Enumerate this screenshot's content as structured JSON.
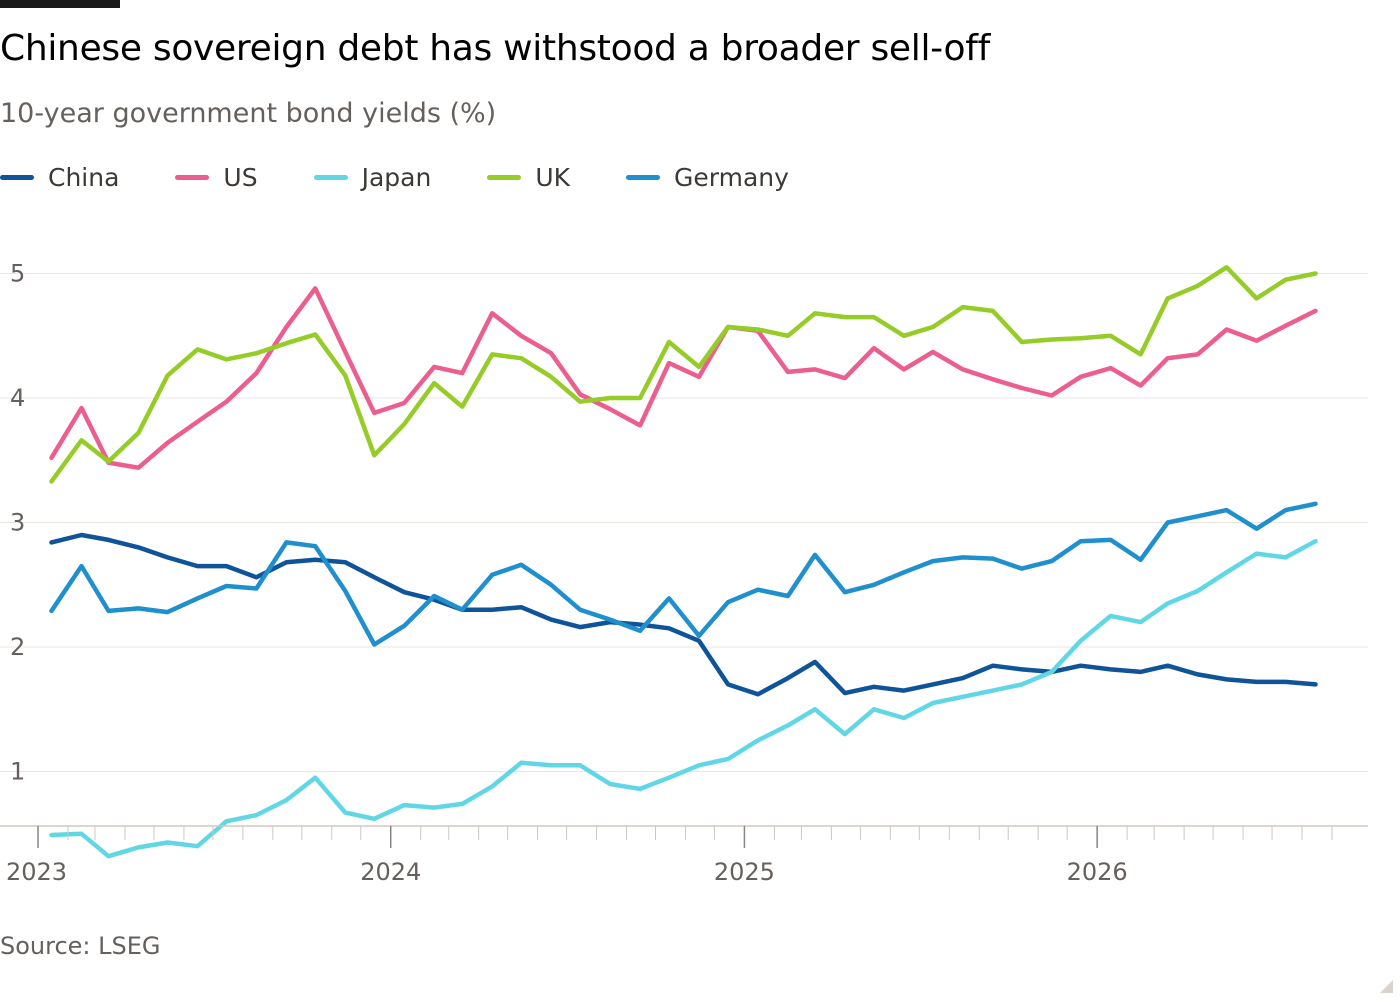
{
  "title": "Chinese sovereign debt has withstood a broader sell-off",
  "subtitle": "10-year government bond yields (%)",
  "source": "Source: LSEG",
  "chart_data": {
    "type": "line",
    "x_range": [
      "2023-01-01",
      "2026-09-30"
    ],
    "ylim": [
      0.55,
      5.25
    ],
    "y_ticks": [
      1,
      2,
      3,
      4,
      5
    ],
    "x_ticks": [
      "2023",
      "2024",
      "2025",
      "2026"
    ],
    "grid": true,
    "legend": "top-left",
    "series": [
      {
        "name": "China",
        "color": "#0f5499",
        "points": [
          [
            "2023-01",
            2.84
          ],
          [
            "2023-02",
            2.9
          ],
          [
            "2023-03",
            2.86
          ],
          [
            "2023-04",
            2.8
          ],
          [
            "2023-05",
            2.72
          ],
          [
            "2023-06",
            2.65
          ],
          [
            "2023-07",
            2.65
          ],
          [
            "2023-08",
            2.56
          ],
          [
            "2023-09",
            2.68
          ],
          [
            "2023-10",
            2.7
          ],
          [
            "2023-11",
            2.68
          ],
          [
            "2023-12",
            2.56
          ],
          [
            "2024-01",
            2.44
          ],
          [
            "2024-02",
            2.38
          ],
          [
            "2024-03",
            2.3
          ],
          [
            "2024-04",
            2.3
          ],
          [
            "2024-05",
            2.32
          ],
          [
            "2024-06",
            2.22
          ],
          [
            "2024-07",
            2.16
          ],
          [
            "2024-08",
            2.2
          ],
          [
            "2024-09",
            2.18
          ],
          [
            "2024-10",
            2.15
          ],
          [
            "2024-11",
            2.05
          ],
          [
            "2024-12",
            1.7
          ],
          [
            "2025-01",
            1.62
          ],
          [
            "2025-02",
            1.75
          ],
          [
            "2025-03",
            1.88
          ],
          [
            "2025-04",
            1.63
          ],
          [
            "2025-05",
            1.68
          ],
          [
            "2025-06",
            1.65
          ],
          [
            "2025-07",
            1.7
          ],
          [
            "2025-08",
            1.75
          ],
          [
            "2025-09",
            1.85
          ],
          [
            "2025-10",
            1.82
          ],
          [
            "2025-11",
            1.8
          ],
          [
            "2025-12",
            1.85
          ],
          [
            "2026-01",
            1.82
          ],
          [
            "2026-02",
            1.8
          ],
          [
            "2026-03",
            1.85
          ],
          [
            "2026-04",
            1.78
          ],
          [
            "2026-05",
            1.74
          ],
          [
            "2026-06",
            1.72
          ],
          [
            "2026-07",
            1.72
          ],
          [
            "2026-08",
            1.7
          ]
        ]
      },
      {
        "name": "US",
        "color": "#eb5e8d",
        "points": [
          [
            "2023-01",
            3.52
          ],
          [
            "2023-02",
            3.92
          ],
          [
            "2023-03",
            3.48
          ],
          [
            "2023-04",
            3.44
          ],
          [
            "2023-05",
            3.64
          ],
          [
            "2023-06",
            3.81
          ],
          [
            "2023-07",
            3.97
          ],
          [
            "2023-08",
            4.2
          ],
          [
            "2023-09",
            4.57
          ],
          [
            "2023-10",
            4.88
          ],
          [
            "2023-11",
            4.37
          ],
          [
            "2023-12",
            3.88
          ],
          [
            "2024-01",
            3.96
          ],
          [
            "2024-02",
            4.25
          ],
          [
            "2024-03",
            4.2
          ],
          [
            "2024-04",
            4.68
          ],
          [
            "2024-05",
            4.5
          ],
          [
            "2024-06",
            4.36
          ],
          [
            "2024-07",
            4.03
          ],
          [
            "2024-08",
            3.91
          ],
          [
            "2024-09",
            3.78
          ],
          [
            "2024-10",
            4.28
          ],
          [
            "2024-11",
            4.17
          ],
          [
            "2024-12",
            4.57
          ],
          [
            "2025-01",
            4.54
          ],
          [
            "2025-02",
            4.21
          ],
          [
            "2025-03",
            4.23
          ],
          [
            "2025-04",
            4.16
          ],
          [
            "2025-05",
            4.4
          ],
          [
            "2025-06",
            4.23
          ],
          [
            "2025-07",
            4.37
          ],
          [
            "2025-08",
            4.23
          ],
          [
            "2025-09",
            4.15
          ],
          [
            "2025-10",
            4.08
          ],
          [
            "2025-11",
            4.02
          ],
          [
            "2025-12",
            4.17
          ],
          [
            "2026-01",
            4.24
          ],
          [
            "2026-02",
            4.1
          ],
          [
            "2026-03",
            4.32
          ],
          [
            "2026-04",
            4.35
          ],
          [
            "2026-05",
            4.55
          ],
          [
            "2026-06",
            4.46
          ],
          [
            "2026-07",
            4.58
          ],
          [
            "2026-08",
            4.7
          ]
        ]
      },
      {
        "name": "Japan",
        "color": "#61d7e5",
        "points": [
          [
            "2023-01",
            0.49
          ],
          [
            "2023-02",
            0.5
          ],
          [
            "2023-03",
            0.32
          ],
          [
            "2023-04",
            0.39
          ],
          [
            "2023-05",
            0.43
          ],
          [
            "2023-06",
            0.4
          ],
          [
            "2023-07",
            0.6
          ],
          [
            "2023-08",
            0.65
          ],
          [
            "2023-09",
            0.77
          ],
          [
            "2023-10",
            0.95
          ],
          [
            "2023-11",
            0.67
          ],
          [
            "2023-12",
            0.62
          ],
          [
            "2024-01",
            0.73
          ],
          [
            "2024-02",
            0.71
          ],
          [
            "2024-03",
            0.74
          ],
          [
            "2024-04",
            0.88
          ],
          [
            "2024-05",
            1.07
          ],
          [
            "2024-06",
            1.05
          ],
          [
            "2024-07",
            1.05
          ],
          [
            "2024-08",
            0.9
          ],
          [
            "2024-09",
            0.86
          ],
          [
            "2024-10",
            0.95
          ],
          [
            "2024-11",
            1.05
          ],
          [
            "2024-12",
            1.1
          ],
          [
            "2025-01",
            1.25
          ],
          [
            "2025-02",
            1.37
          ],
          [
            "2025-03",
            1.5
          ],
          [
            "2025-04",
            1.3
          ],
          [
            "2025-05",
            1.5
          ],
          [
            "2025-06",
            1.43
          ],
          [
            "2025-07",
            1.55
          ],
          [
            "2025-08",
            1.6
          ],
          [
            "2025-09",
            1.65
          ],
          [
            "2025-10",
            1.7
          ],
          [
            "2025-11",
            1.8
          ],
          [
            "2025-12",
            2.05
          ],
          [
            "2026-01",
            2.25
          ],
          [
            "2026-02",
            2.2
          ],
          [
            "2026-03",
            2.35
          ],
          [
            "2026-04",
            2.45
          ],
          [
            "2026-05",
            2.6
          ],
          [
            "2026-06",
            2.75
          ],
          [
            "2026-07",
            2.72
          ],
          [
            "2026-08",
            2.85
          ]
        ]
      },
      {
        "name": "UK",
        "color": "#96cc28",
        "points": [
          [
            "2023-01",
            3.33
          ],
          [
            "2023-02",
            3.66
          ],
          [
            "2023-03",
            3.49
          ],
          [
            "2023-04",
            3.72
          ],
          [
            "2023-05",
            4.18
          ],
          [
            "2023-06",
            4.39
          ],
          [
            "2023-07",
            4.31
          ],
          [
            "2023-08",
            4.36
          ],
          [
            "2023-09",
            4.44
          ],
          [
            "2023-10",
            4.51
          ],
          [
            "2023-11",
            4.18
          ],
          [
            "2023-12",
            3.54
          ],
          [
            "2024-01",
            3.79
          ],
          [
            "2024-02",
            4.12
          ],
          [
            "2024-03",
            3.93
          ],
          [
            "2024-04",
            4.35
          ],
          [
            "2024-05",
            4.32
          ],
          [
            "2024-06",
            4.17
          ],
          [
            "2024-07",
            3.97
          ],
          [
            "2024-08",
            4.0
          ],
          [
            "2024-09",
            4.0
          ],
          [
            "2024-10",
            4.45
          ],
          [
            "2024-11",
            4.25
          ],
          [
            "2024-12",
            4.57
          ],
          [
            "2025-01",
            4.55
          ],
          [
            "2025-02",
            4.5
          ],
          [
            "2025-03",
            4.68
          ],
          [
            "2025-04",
            4.65
          ],
          [
            "2025-05",
            4.65
          ],
          [
            "2025-06",
            4.5
          ],
          [
            "2025-07",
            4.57
          ],
          [
            "2025-08",
            4.73
          ],
          [
            "2025-09",
            4.7
          ],
          [
            "2025-10",
            4.45
          ],
          [
            "2025-11",
            4.47
          ],
          [
            "2025-12",
            4.48
          ],
          [
            "2026-01",
            4.5
          ],
          [
            "2026-02",
            4.35
          ],
          [
            "2026-03",
            4.8
          ],
          [
            "2026-04",
            4.9
          ],
          [
            "2026-05",
            5.05
          ],
          [
            "2026-06",
            4.8
          ],
          [
            "2026-07",
            4.95
          ],
          [
            "2026-08",
            5.0
          ]
        ]
      },
      {
        "name": "Germany",
        "color": "#1f8fce",
        "points": [
          [
            "2023-01",
            2.29
          ],
          [
            "2023-02",
            2.65
          ],
          [
            "2023-03",
            2.29
          ],
          [
            "2023-04",
            2.31
          ],
          [
            "2023-05",
            2.28
          ],
          [
            "2023-06",
            2.39
          ],
          [
            "2023-07",
            2.49
          ],
          [
            "2023-08",
            2.47
          ],
          [
            "2023-09",
            2.84
          ],
          [
            "2023-10",
            2.81
          ],
          [
            "2023-11",
            2.45
          ],
          [
            "2023-12",
            2.02
          ],
          [
            "2024-01",
            2.17
          ],
          [
            "2024-02",
            2.41
          ],
          [
            "2024-03",
            2.3
          ],
          [
            "2024-04",
            2.58
          ],
          [
            "2024-05",
            2.66
          ],
          [
            "2024-06",
            2.5
          ],
          [
            "2024-07",
            2.3
          ],
          [
            "2024-08",
            2.22
          ],
          [
            "2024-09",
            2.13
          ],
          [
            "2024-10",
            2.39
          ],
          [
            "2024-11",
            2.09
          ],
          [
            "2024-12",
            2.36
          ],
          [
            "2025-01",
            2.46
          ],
          [
            "2025-02",
            2.41
          ],
          [
            "2025-03",
            2.74
          ],
          [
            "2025-04",
            2.44
          ],
          [
            "2025-05",
            2.5
          ],
          [
            "2025-06",
            2.6
          ],
          [
            "2025-07",
            2.69
          ],
          [
            "2025-08",
            2.72
          ],
          [
            "2025-09",
            2.71
          ],
          [
            "2025-10",
            2.63
          ],
          [
            "2025-11",
            2.69
          ],
          [
            "2025-12",
            2.85
          ],
          [
            "2026-01",
            2.86
          ],
          [
            "2026-02",
            2.7
          ],
          [
            "2026-03",
            3.0
          ],
          [
            "2026-04",
            3.05
          ],
          [
            "2026-05",
            3.1
          ],
          [
            "2026-06",
            2.95
          ],
          [
            "2026-07",
            3.1
          ],
          [
            "2026-08",
            3.15
          ]
        ]
      }
    ]
  }
}
